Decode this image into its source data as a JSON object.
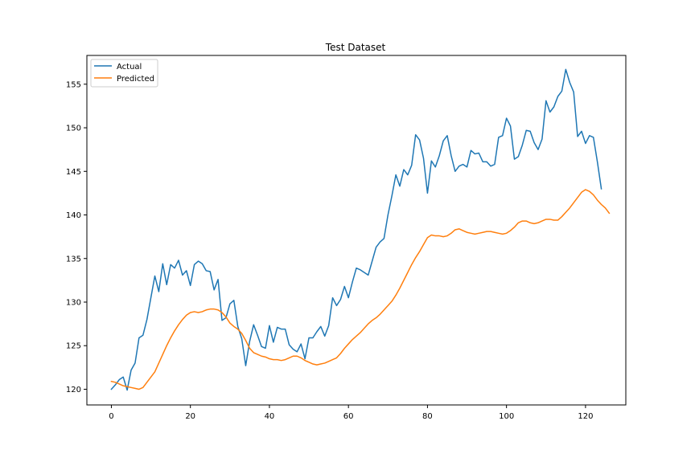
{
  "chart_data": {
    "type": "line",
    "title": "Test Dataset",
    "xlabel": "",
    "ylabel": "",
    "xlim": [
      -6.2,
      130.2
    ],
    "ylim": [
      118.2,
      158.3
    ],
    "xticks": [
      0,
      20,
      40,
      60,
      80,
      100,
      120
    ],
    "yticks": [
      120,
      125,
      130,
      135,
      140,
      145,
      150,
      155
    ],
    "grid": false,
    "legend": "top-left",
    "series": [
      {
        "name": "Actual",
        "color": "#1f77b4",
        "x_start": 0,
        "values": [
          120.0,
          120.5,
          121.1,
          121.4,
          119.9,
          122.2,
          123.0,
          125.9,
          126.2,
          128.0,
          130.5,
          133.0,
          131.2,
          134.4,
          132.0,
          134.3,
          133.9,
          134.8,
          133.1,
          133.6,
          131.9,
          134.3,
          134.7,
          134.4,
          133.6,
          133.5,
          131.4,
          132.6,
          127.9,
          128.2,
          129.8,
          130.2,
          127.2,
          125.8,
          122.7,
          125.5,
          127.4,
          126.2,
          124.9,
          124.7,
          127.3,
          125.4,
          127.1,
          126.9,
          126.9,
          125.1,
          124.6,
          124.3,
          125.2,
          123.5,
          125.9,
          125.9,
          126.6,
          127.2,
          126.1,
          127.3,
          130.5,
          129.6,
          130.3,
          131.8,
          130.5,
          132.3,
          133.9,
          133.7,
          133.4,
          133.1,
          134.7,
          136.3,
          136.9,
          137.3,
          140.0,
          142.2,
          144.6,
          143.3,
          145.2,
          144.6,
          145.7,
          149.2,
          148.6,
          146.5,
          142.5,
          146.2,
          145.5,
          146.8,
          148.5,
          149.1,
          146.8,
          145.0,
          145.6,
          145.8,
          145.5,
          147.4,
          147.0,
          147.1,
          146.1,
          146.1,
          145.6,
          145.8,
          148.9,
          149.1,
          151.1,
          150.2,
          146.4,
          146.7,
          148.0,
          149.7,
          149.6,
          148.3,
          147.5,
          148.7,
          153.1,
          151.8,
          152.4,
          153.6,
          154.2,
          156.7,
          155.2,
          154.1,
          149.0,
          149.6,
          148.2,
          149.1,
          148.9,
          146.1,
          143.0
        ]
      },
      {
        "name": "Predicted",
        "color": "#ff7f0e",
        "x_start": 0,
        "values": [
          120.9,
          120.8,
          120.6,
          120.4,
          120.3,
          120.2,
          120.1,
          120.0,
          120.2,
          120.8,
          121.4,
          122.0,
          123.0,
          124.0,
          125.0,
          125.9,
          126.7,
          127.4,
          128.0,
          128.5,
          128.8,
          128.9,
          128.8,
          128.9,
          129.1,
          129.2,
          129.2,
          129.1,
          128.8,
          128.3,
          127.6,
          127.2,
          126.9,
          126.4,
          125.6,
          124.7,
          124.2,
          124.0,
          123.8,
          123.7,
          123.5,
          123.4,
          123.4,
          123.3,
          123.4,
          123.6,
          123.8,
          123.8,
          123.6,
          123.3,
          123.1,
          122.9,
          122.8,
          122.9,
          123.0,
          123.2,
          123.4,
          123.6,
          124.1,
          124.7,
          125.2,
          125.7,
          126.1,
          126.5,
          127.0,
          127.5,
          127.9,
          128.2,
          128.6,
          129.1,
          129.6,
          130.1,
          130.8,
          131.6,
          132.5,
          133.4,
          134.3,
          135.1,
          135.8,
          136.6,
          137.4,
          137.7,
          137.6,
          137.6,
          137.5,
          137.6,
          137.9,
          138.3,
          138.4,
          138.2,
          138.0,
          137.9,
          137.8,
          137.9,
          138.0,
          138.1,
          138.1,
          138.0,
          137.9,
          137.8,
          137.9,
          138.2,
          138.6,
          139.1,
          139.3,
          139.3,
          139.1,
          139.0,
          139.1,
          139.3,
          139.5,
          139.5,
          139.4,
          139.4,
          139.8,
          140.3,
          140.8,
          141.4,
          142.0,
          142.6,
          142.9,
          142.7,
          142.3,
          141.7,
          141.2,
          140.8,
          140.2
        ]
      }
    ]
  }
}
